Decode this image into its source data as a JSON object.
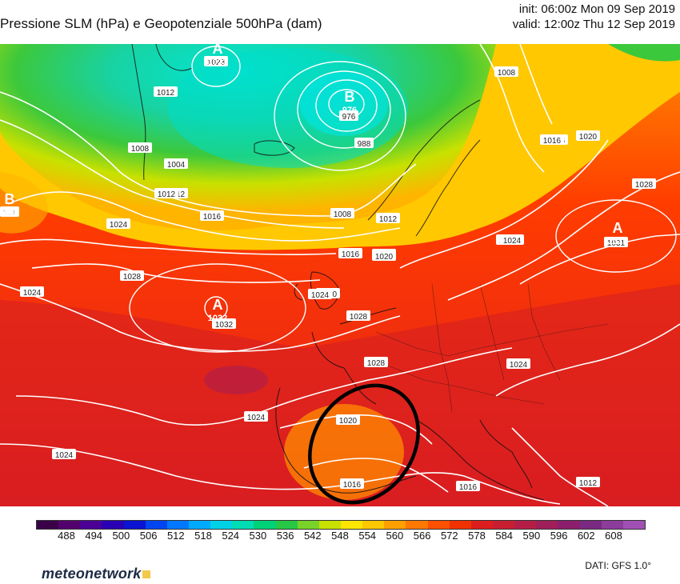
{
  "header": {
    "title": "Pressione SLM (hPa) e Geopotenziale 500hPa (dam)",
    "init": "init: 06:00z Mon 09 Sep 2019",
    "valid": "valid: 12:00z Thu 12 Sep 2019"
  },
  "map": {
    "isobar_labels": [
      "1012",
      "1023",
      "976",
      "988",
      "1008",
      "1004",
      "1012",
      "1016",
      "1008",
      "1012",
      "1020",
      "1024",
      "1028",
      "1024",
      "1016",
      "1020",
      "1028",
      "1032",
      "1024",
      "1024",
      "1028",
      "1020",
      "1016",
      "1024",
      "1016",
      "1012",
      "1031",
      "1020",
      "1024",
      "1008",
      "1004",
      "1012",
      "1016",
      "1020",
      "1024",
      "101",
      "1028",
      "1024",
      "1016"
    ],
    "highs": [
      {
        "letter": "A",
        "value": "1023"
      },
      {
        "letter": "A",
        "value": "1032"
      },
      {
        "letter": "A",
        "value": "1031"
      }
    ],
    "lows": [
      {
        "letter": "B",
        "value": "976"
      }
    ],
    "edge_lows": [
      {
        "letter": "B",
        "value": "101"
      }
    ]
  },
  "colorbar": {
    "labels": [
      "488",
      "494",
      "500",
      "506",
      "512",
      "518",
      "524",
      "530",
      "536",
      "542",
      "548",
      "554",
      "560",
      "566",
      "572",
      "578",
      "584",
      "590",
      "596",
      "602",
      "608"
    ],
    "colors": [
      "#3a0048",
      "#52006e",
      "#4b0096",
      "#2a00b4",
      "#0a14d2",
      "#0046f0",
      "#0078ff",
      "#00aaff",
      "#00d2e6",
      "#00dcb4",
      "#00d278",
      "#28c846",
      "#78d228",
      "#c8e100",
      "#ffe600",
      "#ffc800",
      "#ffa000",
      "#ff7800",
      "#ff5000",
      "#f03200",
      "#dc1e1e",
      "#c81e32",
      "#b41e46",
      "#a01e5a",
      "#8c1e6e",
      "#7a2a82",
      "#8c3c9a",
      "#a050b4"
    ]
  },
  "footer": {
    "source": "DATI:  GFS  1.0°",
    "logo": "meteonetwork"
  }
}
